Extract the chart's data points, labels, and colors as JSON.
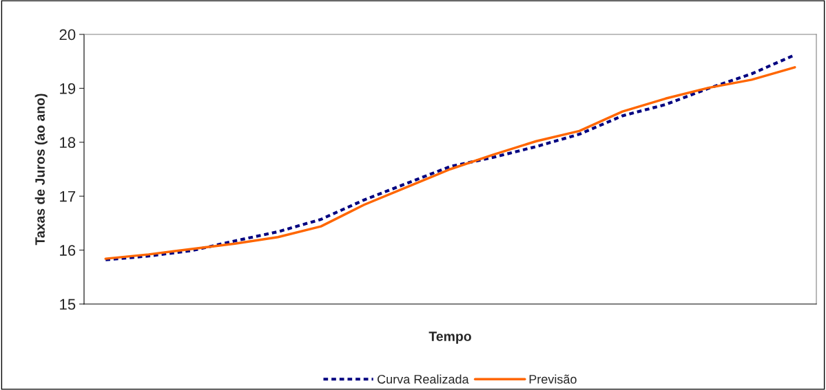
{
  "chart_data": {
    "type": "line",
    "xlabel": "Tempo",
    "ylabel": "Taxas de Juros (ao ano)",
    "categories": [
      null,
      null,
      null,
      null,
      null,
      null,
      null,
      null,
      null,
      null,
      null,
      null,
      null,
      null,
      null,
      null,
      null
    ],
    "series": [
      {
        "name": "Curva Realizada",
        "color": "#000080",
        "line_style": "dashed",
        "values": [
          15.82,
          15.89,
          15.99,
          16.17,
          16.34,
          16.57,
          16.93,
          17.24,
          17.55,
          17.72,
          17.92,
          18.15,
          18.49,
          18.7,
          19.0,
          19.27,
          19.62
        ]
      },
      {
        "name": "Previsão",
        "color": "#ff6600",
        "line_style": "solid",
        "values": [
          15.84,
          15.92,
          16.02,
          16.12,
          16.24,
          16.44,
          16.84,
          17.17,
          17.5,
          17.77,
          18.02,
          18.21,
          18.57,
          18.81,
          19.01,
          19.16,
          19.39
        ]
      }
    ],
    "ylim": [
      15,
      20
    ],
    "yticks": [
      15,
      16,
      17,
      18,
      19,
      20
    ],
    "grid": false,
    "legend": "bottom",
    "marker": "none"
  }
}
